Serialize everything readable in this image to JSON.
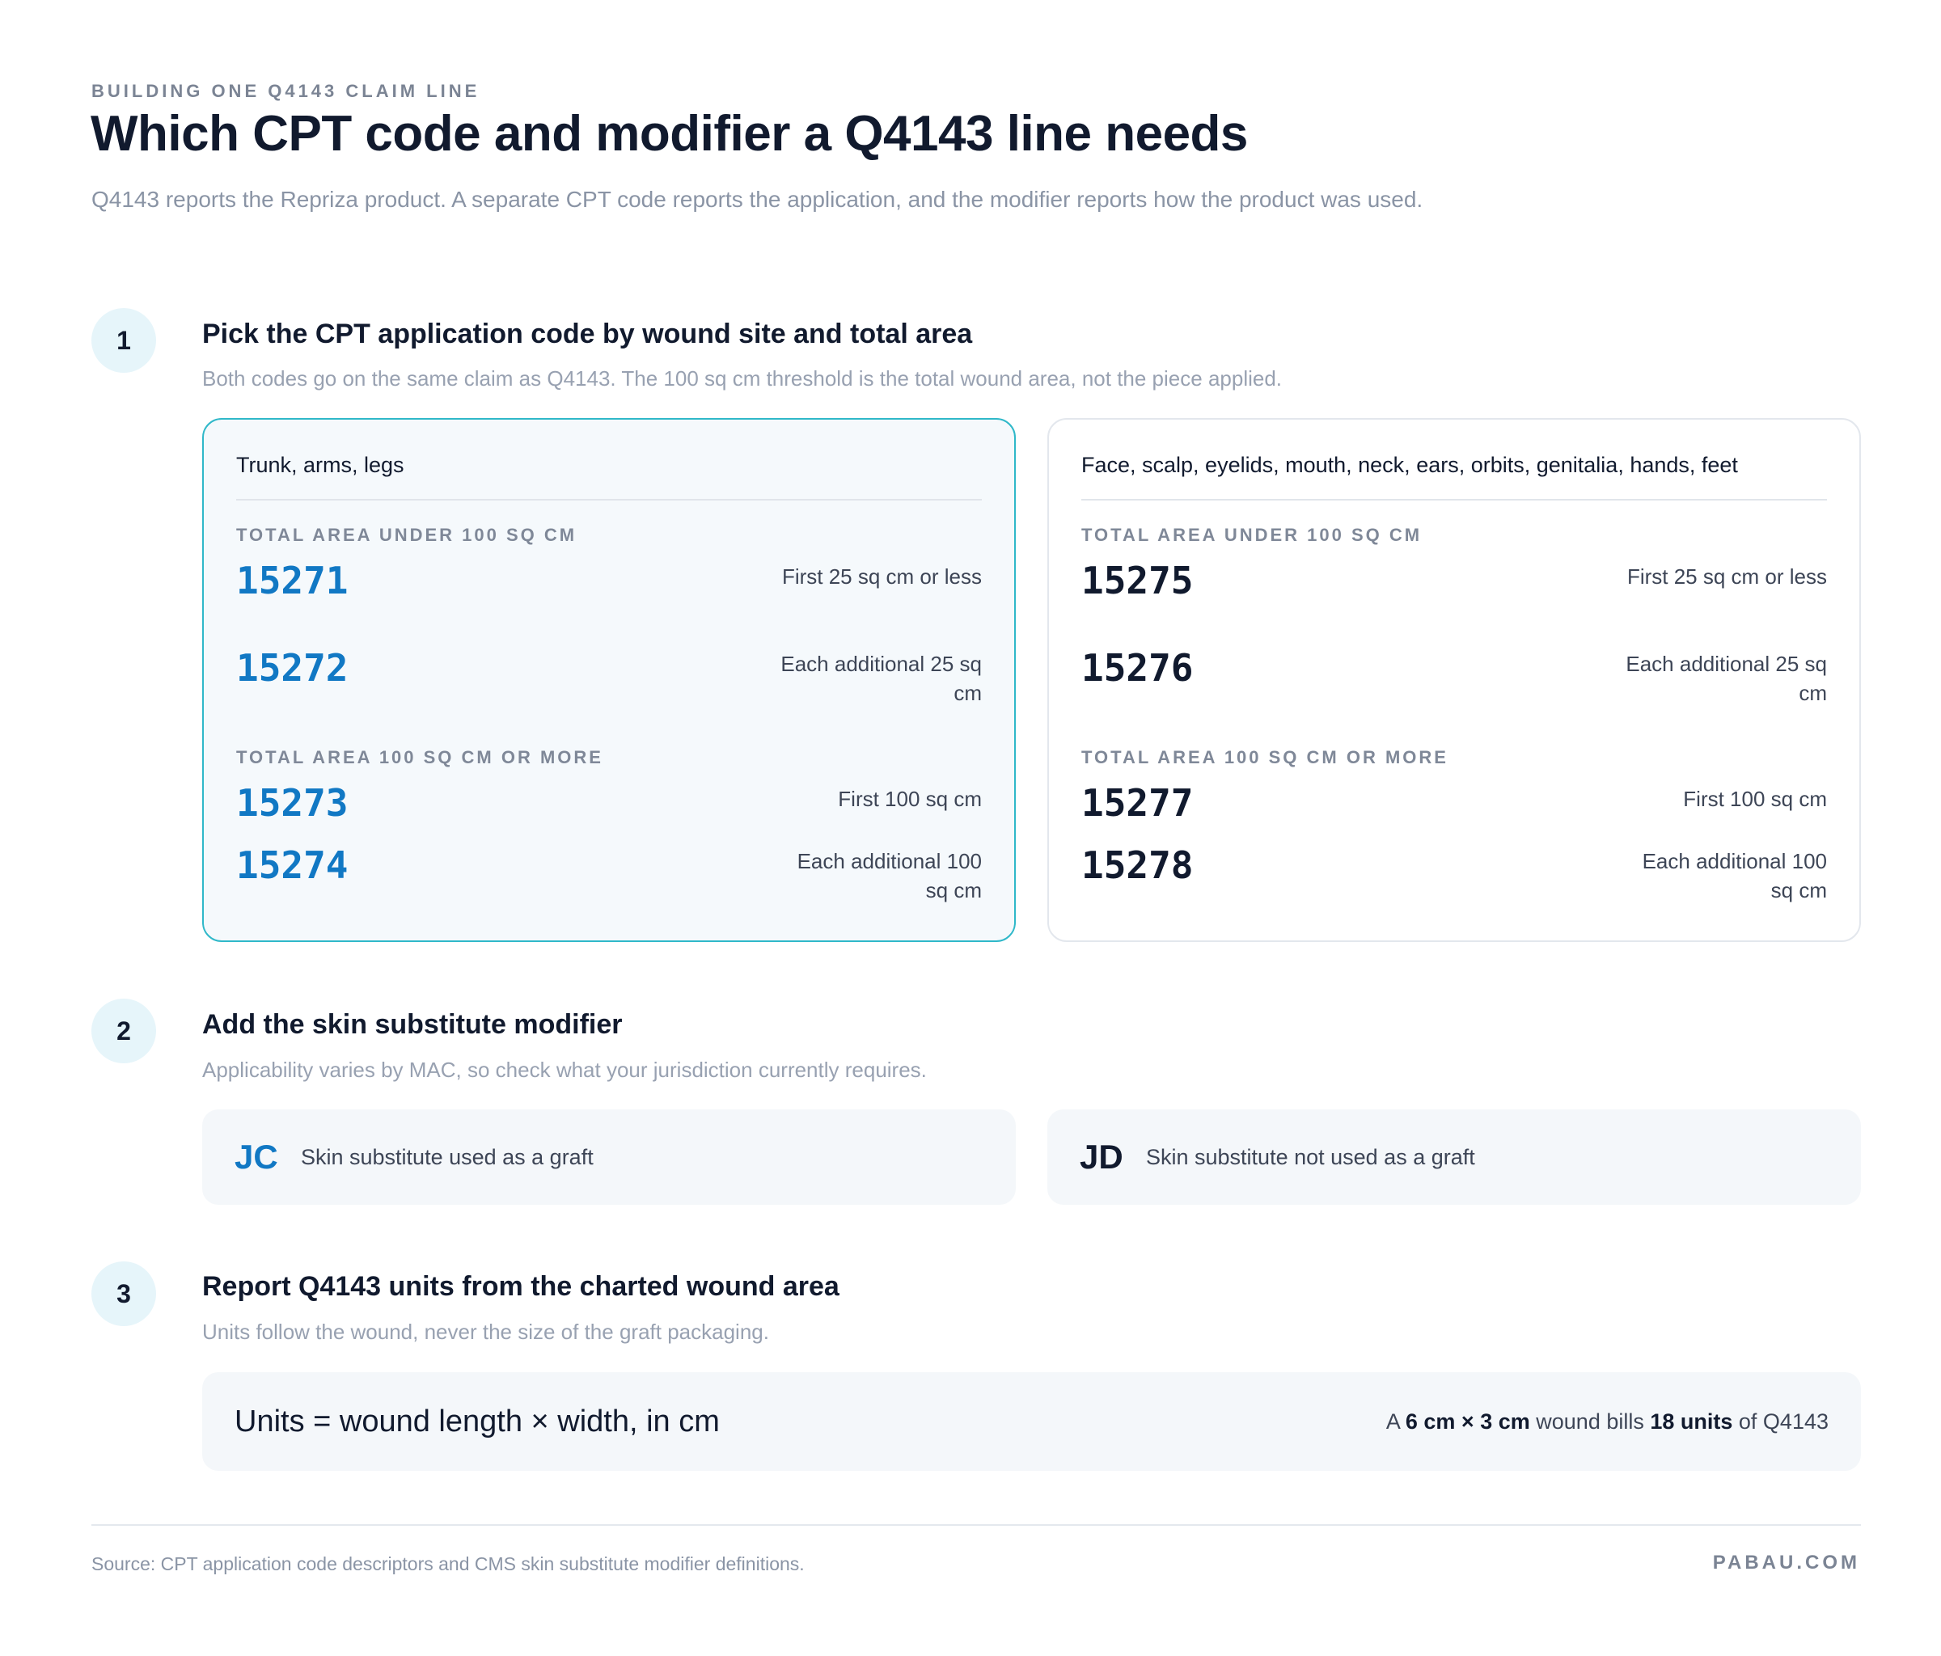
{
  "header": {
    "eyebrow": "BUILDING ONE Q4143 CLAIM LINE",
    "title": "Which CPT code and modifier a Q4143 line needs",
    "subtitle": "Q4143 reports the Repriza product. A separate CPT code reports the application, and the modifier reports how the product was used."
  },
  "steps": [
    {
      "number": "1",
      "title": "Pick the CPT application code by wound site and total area",
      "description": "Both codes go on the same claim as Q4143. The 100 sq cm threshold is the total wound area, not the piece applied."
    },
    {
      "number": "2",
      "title": "Add the skin substitute modifier",
      "description": "Applicability varies by MAC, so check what your jurisdiction currently requires."
    },
    {
      "number": "3",
      "title": "Report Q4143 units from the charted wound area",
      "description": "Units follow the wound, never the size of the graft packaging."
    }
  ],
  "cpt_cards": [
    {
      "site": "Trunk, arms, legs",
      "groups": [
        {
          "label": "TOTAL AREA UNDER 100 SQ CM",
          "codes": [
            {
              "code": "15271",
              "desc": "First 25 sq cm or less"
            },
            {
              "code": "15272",
              "desc": "Each additional 25 sq cm"
            }
          ]
        },
        {
          "label": "TOTAL AREA 100 SQ CM OR MORE",
          "codes": [
            {
              "code": "15273",
              "desc": "First 100 sq cm"
            },
            {
              "code": "15274",
              "desc": "Each additional 100 sq cm"
            }
          ]
        }
      ]
    },
    {
      "site": "Face, scalp, eyelids, mouth, neck, ears, orbits, genitalia, hands, feet",
      "groups": [
        {
          "label": "TOTAL AREA UNDER 100 SQ CM",
          "codes": [
            {
              "code": "15275",
              "desc": "First 25 sq cm or less"
            },
            {
              "code": "15276",
              "desc": "Each additional 25 sq cm"
            }
          ]
        },
        {
          "label": "TOTAL AREA 100 SQ CM OR MORE",
          "codes": [
            {
              "code": "15277",
              "desc": "First 100 sq cm"
            },
            {
              "code": "15278",
              "desc": "Each additional 100 sq cm"
            }
          ]
        }
      ]
    }
  ],
  "modifiers": [
    {
      "code": "JC",
      "desc": "Skin substitute used as a graft"
    },
    {
      "code": "JD",
      "desc": "Skin substitute not used as a graft"
    }
  ],
  "units": {
    "formula": "Units = wound length × width, in cm",
    "example_prefix": "A",
    "example_size": "6 cm × 3 cm",
    "example_mid": "wound bills",
    "example_units": "18 units",
    "example_suffix": "of Q4143"
  },
  "footer": {
    "source": "Source: CPT application code descriptors and CMS skin substitute modifier definitions.",
    "brand": "PABAU.COM"
  },
  "colors": {
    "accent_blue": "#1178c4",
    "accent_teal_border": "#2fb8c9",
    "heading": "#111a2e",
    "muted": "#8a94a5"
  }
}
